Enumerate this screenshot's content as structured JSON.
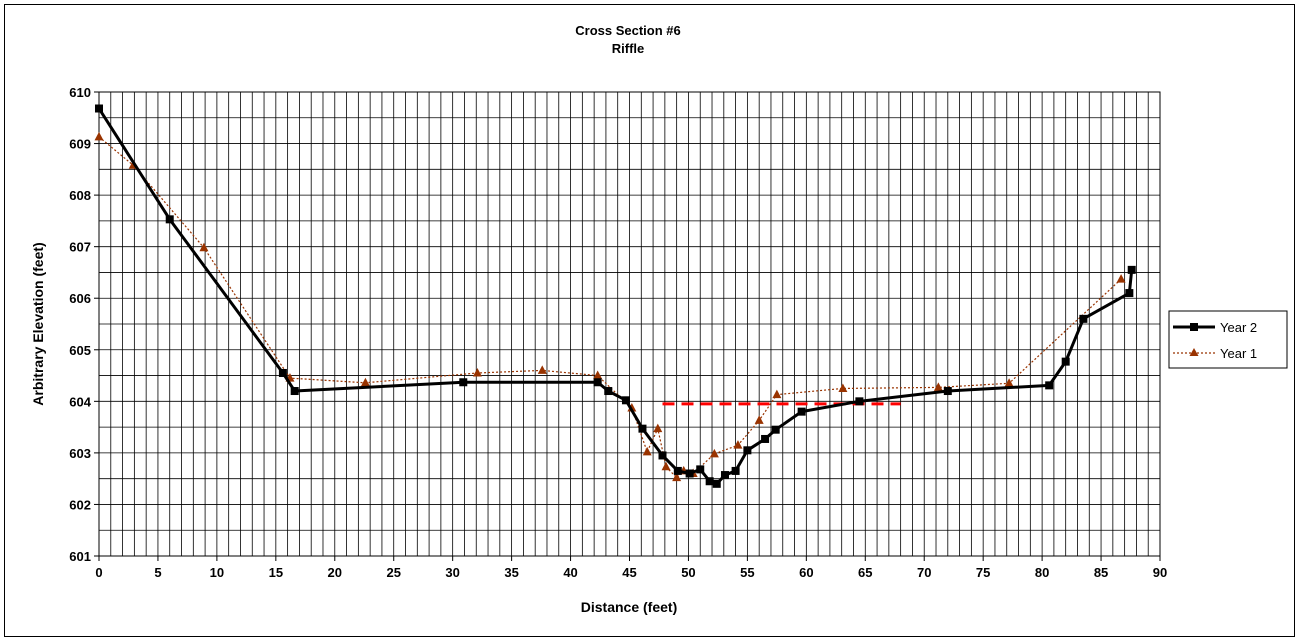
{
  "chart_data": {
    "type": "line",
    "title": "Cross Section #6",
    "subtitle": "Riffle",
    "xlabel": "Distance (feet)",
    "ylabel": "Arbitrary Elevation (feet)",
    "xlim": [
      0,
      90
    ],
    "ylim": [
      601,
      610
    ],
    "x_ticks": [
      "0",
      "5",
      "10",
      "15",
      "20",
      "25",
      "30",
      "35",
      "40",
      "45",
      "50",
      "55",
      "60",
      "65",
      "70",
      "75",
      "80",
      "85",
      "90"
    ],
    "y_ticks": [
      "601",
      "602",
      "603",
      "604",
      "605",
      "606",
      "607",
      "608",
      "609",
      "610"
    ],
    "grid": true,
    "legend_position": "right",
    "series": [
      {
        "name": "Year 2",
        "color": "#000000",
        "marker": "square",
        "line_style": "solid",
        "points": [
          [
            0,
            609.68
          ],
          [
            6.0,
            607.53
          ],
          [
            15.6,
            604.55
          ],
          [
            16.6,
            604.2
          ],
          [
            30.9,
            604.37
          ],
          [
            42.3,
            604.37
          ],
          [
            43.2,
            604.2
          ],
          [
            44.7,
            604.02
          ],
          [
            46.1,
            603.47
          ],
          [
            47.8,
            602.95
          ],
          [
            49.1,
            602.65
          ],
          [
            50.1,
            602.6
          ],
          [
            51.0,
            602.68
          ],
          [
            51.8,
            602.45
          ],
          [
            52.4,
            602.4
          ],
          [
            53.1,
            602.57
          ],
          [
            54.0,
            602.65
          ],
          [
            55.0,
            603.05
          ],
          [
            56.5,
            603.27
          ],
          [
            57.4,
            603.45
          ],
          [
            59.6,
            603.8
          ],
          [
            64.5,
            604.0
          ],
          [
            72.0,
            604.2
          ],
          [
            80.6,
            604.31
          ],
          [
            82.0,
            604.77
          ],
          [
            83.5,
            605.6
          ],
          [
            87.4,
            606.1
          ],
          [
            87.6,
            606.55
          ]
        ]
      },
      {
        "name": "Year 1",
        "color": "#993300",
        "marker": "triangle",
        "line_style": "dotted",
        "points": [
          [
            0,
            609.13
          ],
          [
            2.9,
            608.58
          ],
          [
            8.9,
            606.98
          ],
          [
            16.2,
            604.45
          ],
          [
            22.6,
            604.36
          ],
          [
            32.1,
            604.55
          ],
          [
            37.6,
            604.6
          ],
          [
            42.3,
            604.5
          ],
          [
            45.2,
            603.87
          ],
          [
            46.5,
            603.02
          ],
          [
            47.4,
            603.47
          ],
          [
            48.1,
            602.73
          ],
          [
            49.0,
            602.52
          ],
          [
            49.6,
            602.65
          ],
          [
            50.4,
            602.6
          ],
          [
            52.2,
            602.98
          ],
          [
            54.2,
            603.15
          ],
          [
            56.0,
            603.63
          ],
          [
            57.5,
            604.13
          ],
          [
            63.1,
            604.25
          ],
          [
            71.2,
            604.27
          ],
          [
            77.2,
            604.35
          ],
          [
            86.7,
            606.37
          ]
        ]
      },
      {
        "name": "",
        "color": "#ff0000",
        "marker": "none",
        "line_style": "dashed",
        "points": [
          [
            47.8,
            603.95
          ],
          [
            68.0,
            603.95
          ]
        ]
      }
    ]
  }
}
